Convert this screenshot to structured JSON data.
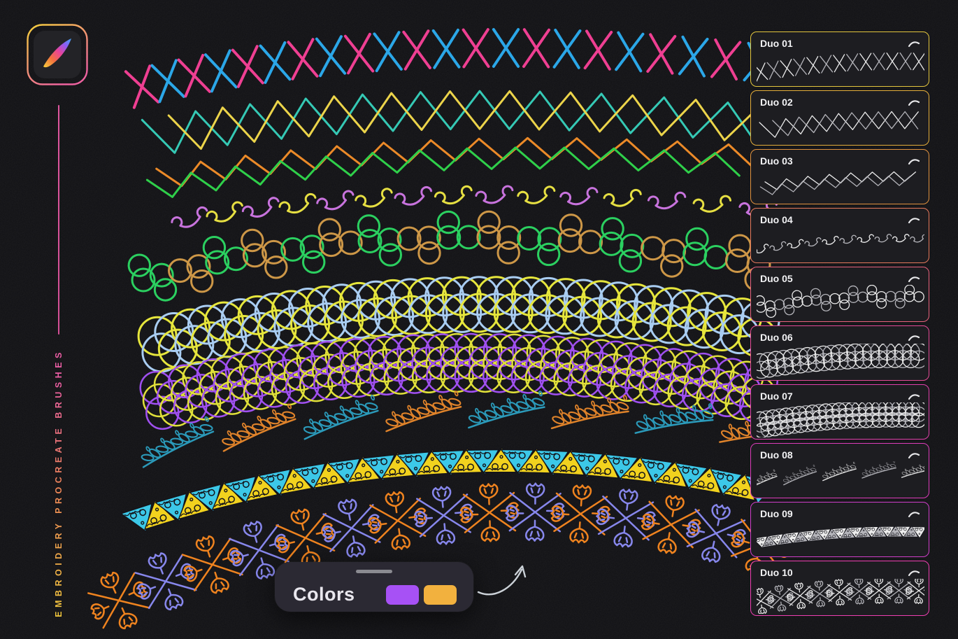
{
  "page": {
    "background": "#101013"
  },
  "branding": {
    "app_icon_name": "procreate-app-icon",
    "vertical_label": "EMBROIDERY PROCREATE BRUSHES",
    "label_gradient": [
      "#f2c93c",
      "#ef5fa7"
    ],
    "icon_border_gradient": [
      "#f5d03c",
      "#ef63a0"
    ],
    "feather_gradient": [
      "#f7d03c",
      "#f2703e",
      "#e8439a",
      "#8b5cf5",
      "#3fa9f5"
    ]
  },
  "colors_panel": {
    "label": "Colors",
    "swatches": [
      {
        "name": "purple",
        "hex": "#a751f5"
      },
      {
        "name": "amber",
        "hex": "#f2b13e"
      }
    ]
  },
  "brush_cards": [
    {
      "label": "Duo 01",
      "border": "#e3c63e",
      "pattern": "cross"
    },
    {
      "label": "Duo 02",
      "border": "#e4ae3b",
      "pattern": "diamond"
    },
    {
      "label": "Duo 03",
      "border": "#e0923f",
      "pattern": "chevron"
    },
    {
      "label": "Duo 04",
      "border": "#e5795b",
      "pattern": "swirl"
    },
    {
      "label": "Duo 05",
      "border": "#e7627d",
      "pattern": "chain"
    },
    {
      "label": "Duo 06",
      "border": "#e54b97",
      "pattern": "circles2"
    },
    {
      "label": "Duo 07",
      "border": "#e040ab",
      "pattern": "circles3"
    },
    {
      "label": "Duo 08",
      "border": "#dc3cba",
      "pattern": "leaf"
    },
    {
      "label": "Duo 09",
      "border": "#cf3ec9",
      "pattern": "tri"
    },
    {
      "label": "Duo 10",
      "border": "#ee3fb1",
      "pattern": "flower"
    }
  ],
  "strokes": [
    {
      "name": "cross-stitch",
      "type": "cross",
      "colors": [
        "#ef3f92",
        "#2ba7e8"
      ],
      "p0": [
        203,
        124
      ],
      "c": [
        590,
        34
      ],
      "p2": [
        1085,
        90
      ],
      "size": 22,
      "spacing": 43,
      "stroke": 4
    },
    {
      "name": "diamond-zigzag",
      "type": "diamond",
      "colors": [
        "#35c9b5",
        "#ecd44a"
      ],
      "p0": [
        208,
        198
      ],
      "c": [
        600,
        128
      ],
      "p2": [
        1085,
        178
      ],
      "amp": 27,
      "period": 86,
      "stroke": 3
    },
    {
      "name": "chevron-zigzag",
      "type": "chevron",
      "colors": [
        "#ec8a28",
        "#2fd04a"
      ],
      "p0": [
        212,
        266
      ],
      "c": [
        610,
        196
      ],
      "p2": [
        1085,
        232
      ],
      "amp": 15,
      "period": 70,
      "stroke": 3
    },
    {
      "name": "curl-scroll",
      "type": "swirl",
      "colors": [
        "#c873dd",
        "#e6df42"
      ],
      "p0": [
        272,
        310
      ],
      "c": [
        620,
        252
      ],
      "p2": [
        1085,
        295
      ],
      "spacing": 57,
      "scale": 1,
      "stroke": 3
    },
    {
      "name": "circle-chain",
      "type": "chain",
      "colors": [
        "#2bd060",
        "#cd9747"
      ],
      "p0": [
        205,
        400
      ],
      "c": [
        610,
        290
      ],
      "p2": [
        1085,
        378
      ],
      "r": 16,
      "spacing": 29,
      "stroke": 3
    },
    {
      "name": "circle-overlap",
      "type": "circles2",
      "colors": [
        "#e6e63c",
        "#a9cdf2"
      ],
      "p0": [
        228,
        492
      ],
      "c": [
        640,
        390
      ],
      "p2": [
        1085,
        470
      ],
      "r": 27,
      "spacing": 25,
      "stroke": 3
    },
    {
      "name": "circle-dense",
      "type": "circles3",
      "colors": [
        "#a050f0",
        "#e0e03a"
      ],
      "p0": [
        228,
        572
      ],
      "c": [
        650,
        470
      ],
      "p2": [
        1085,
        562
      ],
      "r": 23,
      "spacing": 21,
      "stroke": 2.5
    },
    {
      "name": "leaf-garland",
      "type": "leaf",
      "colors": [
        "#2b9aba",
        "#e0832a"
      ],
      "p0": [
        255,
        642
      ],
      "c": [
        660,
        560
      ],
      "p2": [
        1085,
        625
      ],
      "spacing": 112,
      "scale": 1,
      "stroke": 2.5
    },
    {
      "name": "triangle-ornament",
      "type": "tri",
      "colors": [
        "#3cc8e8",
        "#f2d21e"
      ],
      "p0": [
        200,
        742
      ],
      "c": [
        640,
        600
      ],
      "p2": [
        1085,
        700
      ],
      "spacing": 25,
      "scale": 1,
      "stroke": 1.5
    },
    {
      "name": "ginkgo-cross",
      "type": "flower",
      "colors": [
        "#ef831f",
        "#8787ec"
      ],
      "p0": [
        170,
        858
      ],
      "c": [
        640,
        655
      ],
      "p2": [
        1088,
        778
      ],
      "spacing": 64,
      "scale": 1,
      "stroke": 2.5
    }
  ],
  "ui_theme": {
    "card_bg": "#1d1d21",
    "card_label_color": "#f2f2f4",
    "preview_stroke_1": "#ececec",
    "preview_stroke_2": "#b4b4ba",
    "panel_bg": "#2b2933",
    "handle_color": "#8b8b91",
    "arrow_color": "#ccd2d8",
    "ornament_dark": "#14141a"
  }
}
